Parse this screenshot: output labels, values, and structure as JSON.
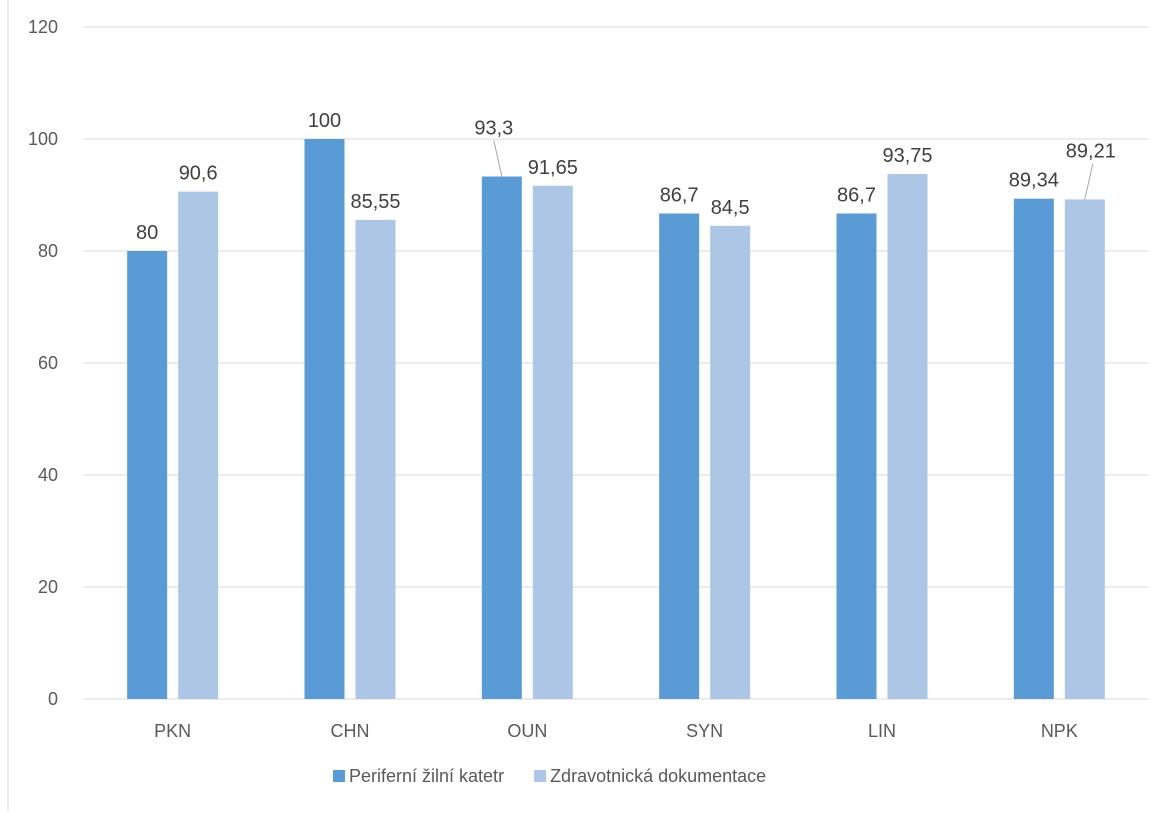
{
  "chart_data": {
    "type": "bar",
    "categories": [
      "PKN",
      "CHN",
      "OUN",
      "SYN",
      "LIN",
      "NPK"
    ],
    "series": [
      {
        "name": "Periferní žilní katetr",
        "values": [
          80,
          100,
          93.3,
          86.7,
          86.7,
          89.34
        ],
        "labels": [
          "80",
          "100",
          "93,3",
          "86,7",
          "86,7",
          "89,34"
        ],
        "color": "#5B9BD5"
      },
      {
        "name": "Zdravotnická dokumentace",
        "values": [
          90.6,
          85.55,
          91.65,
          84.5,
          93.75,
          89.21
        ],
        "labels": [
          "90,6",
          "85,55",
          "91,65",
          "84,5",
          "93,75",
          "89,21"
        ],
        "color": "#ADC6E6"
      }
    ],
    "ylim": [
      0,
      120
    ],
    "yticks": [
      0,
      20,
      40,
      60,
      80,
      100,
      120
    ],
    "grid": true,
    "legend": "bottom",
    "title": "",
    "xlabel": "",
    "ylabel": ""
  }
}
